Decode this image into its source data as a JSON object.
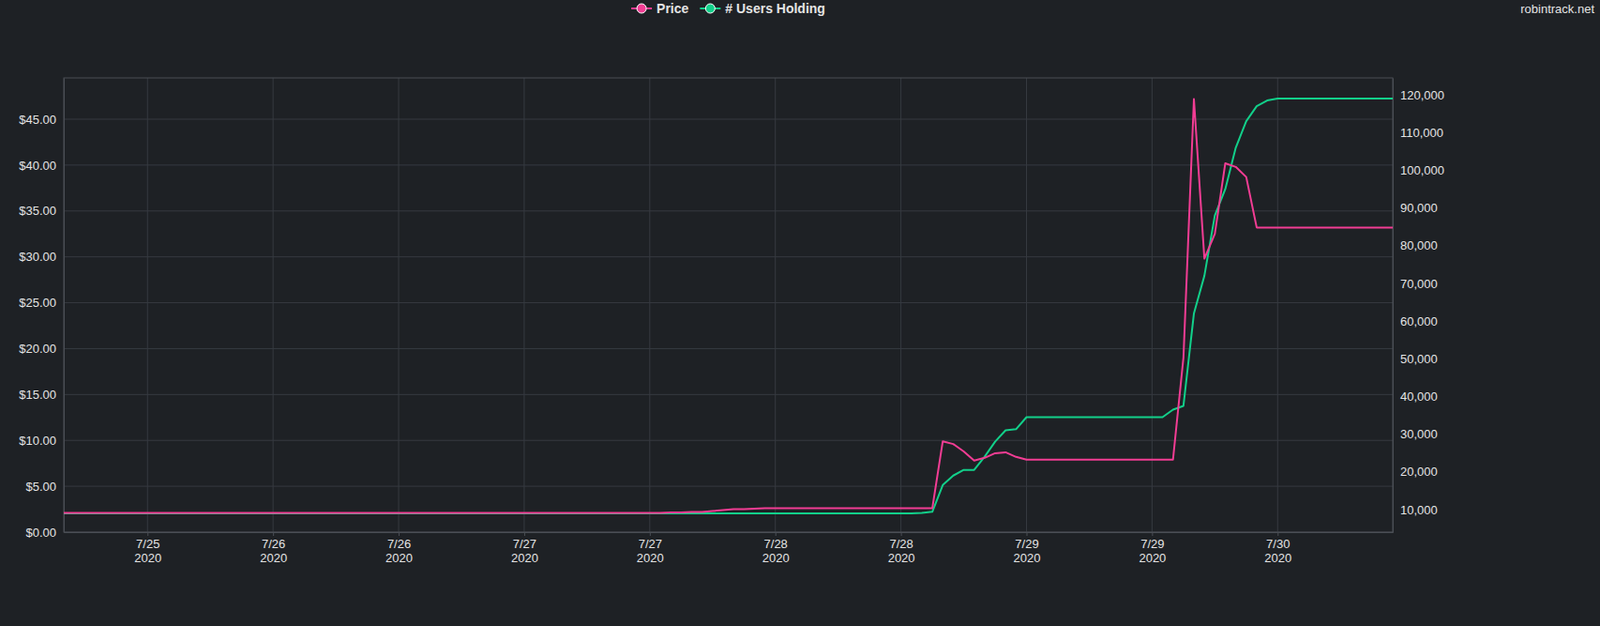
{
  "chart_data": {
    "type": "line",
    "annotations": [
      "robintrack.net"
    ],
    "legend": "top",
    "grid": true,
    "categories": [
      null,
      null,
      null,
      null,
      null,
      null,
      null,
      null,
      "7/25 2020",
      null,
      null,
      null,
      null,
      null,
      null,
      null,
      null,
      null,
      null,
      null,
      "7/26 2020",
      null,
      null,
      null,
      null,
      null,
      null,
      null,
      null,
      null,
      null,
      null,
      "7/26 2020",
      null,
      null,
      null,
      null,
      null,
      null,
      null,
      null,
      null,
      null,
      null,
      "7/27 2020",
      null,
      null,
      null,
      null,
      null,
      null,
      null,
      null,
      null,
      null,
      null,
      "7/27 2020",
      null,
      null,
      null,
      null,
      null,
      null,
      null,
      null,
      null,
      null,
      null,
      "7/28 2020",
      null,
      null,
      null,
      null,
      null,
      null,
      null,
      null,
      null,
      null,
      null,
      "7/28 2020",
      null,
      null,
      null,
      null,
      null,
      null,
      null,
      null,
      null,
      null,
      null,
      "7/29 2020",
      null,
      null,
      null,
      null,
      null,
      null,
      null,
      null,
      null,
      null,
      null,
      "7/29 2020",
      null,
      null,
      null,
      null,
      null,
      null,
      null,
      null,
      null,
      null,
      null,
      "7/30 2020",
      null,
      null,
      null,
      null,
      null,
      null,
      null,
      null,
      null,
      null,
      null
    ],
    "series": [
      {
        "name": "Price",
        "color": "#f23d94",
        "marker": "circle",
        "values": [
          2.1,
          2.1,
          2.1,
          2.1,
          2.1,
          2.1,
          2.1,
          2.1,
          2.1,
          2.1,
          2.1,
          2.1,
          2.1,
          2.1,
          2.1,
          2.1,
          2.1,
          2.1,
          2.1,
          2.1,
          2.1,
          2.1,
          2.1,
          2.1,
          2.1,
          2.1,
          2.1,
          2.1,
          2.1,
          2.1,
          2.1,
          2.1,
          2.1,
          2.1,
          2.1,
          2.1,
          2.1,
          2.1,
          2.1,
          2.1,
          2.1,
          2.1,
          2.1,
          2.1,
          2.1,
          2.1,
          2.1,
          2.1,
          2.1,
          2.1,
          2.1,
          2.1,
          2.1,
          2.1,
          2.1,
          2.1,
          2.1,
          2.1,
          2.15,
          2.15,
          2.2,
          2.2,
          2.3,
          2.4,
          2.5,
          2.5,
          2.55,
          2.6,
          2.6,
          2.6,
          2.6,
          2.6,
          2.6,
          2.6,
          2.6,
          2.6,
          2.6,
          2.6,
          2.6,
          2.6,
          2.6,
          2.6,
          2.6,
          2.6,
          9.9,
          9.6,
          8.8,
          7.8,
          8.1,
          8.6,
          8.7,
          8.2,
          7.9,
          7.9,
          7.9,
          7.9,
          7.9,
          7.9,
          7.9,
          7.9,
          7.9,
          7.9,
          7.9,
          7.9,
          7.9,
          7.9,
          7.9,
          19,
          47.2,
          29.8,
          32.5,
          40.2,
          39.8,
          38.7,
          33.2,
          33.2,
          33.2,
          33.2,
          33.2,
          33.2,
          33.2,
          33.2,
          33.2,
          33.2,
          33.2,
          33.2,
          33.2,
          33.2
        ]
      },
      {
        "name": "# Users Holding",
        "color": "#12d08a",
        "marker": "circle",
        "axis": "y2",
        "values": [
          9000,
          9000,
          9000,
          9000,
          9000,
          9000,
          9000,
          9000,
          9000,
          9000,
          9000,
          9000,
          9000,
          9000,
          9000,
          9000,
          9000,
          9000,
          9000,
          9000,
          9000,
          9000,
          9000,
          9000,
          9000,
          9000,
          9000,
          9000,
          9000,
          9000,
          9000,
          9000,
          9000,
          9000,
          9000,
          9000,
          9000,
          9000,
          9000,
          9000,
          9000,
          9000,
          9000,
          9000,
          9000,
          9000,
          9000,
          9000,
          9000,
          9000,
          9000,
          9000,
          9000,
          9000,
          9000,
          9000,
          9000,
          9000,
          9000,
          9000,
          9000,
          9000,
          9000,
          9000,
          9000,
          9000,
          9000,
          9000,
          9000,
          9000,
          9000,
          9000,
          9000,
          9000,
          9000,
          9000,
          9000,
          9000,
          9000,
          9000,
          9000,
          9000,
          9100,
          9400,
          16500,
          19000,
          20500,
          20500,
          24000,
          28000,
          31000,
          31300,
          34500,
          34500,
          34500,
          34500,
          34500,
          34500,
          34500,
          34500,
          34500,
          34500,
          34500,
          34500,
          34500,
          34500,
          36500,
          37500,
          62000,
          72000,
          88000,
          95000,
          106000,
          113000,
          117000,
          118500,
          119000,
          119000,
          119000,
          119000,
          119000,
          119000,
          119000,
          119000,
          119000,
          119000,
          119000,
          119000
        ]
      }
    ],
    "ylim": [
      0,
      49.5
    ],
    "yticks": [
      {
        "value": 0,
        "label": "$0.00"
      },
      {
        "value": 5,
        "label": "$5.00"
      },
      {
        "value": 10,
        "label": "$10.00"
      },
      {
        "value": 15,
        "label": "$15.00"
      },
      {
        "value": 20,
        "label": "$20.00"
      },
      {
        "value": 25,
        "label": "$25.00"
      },
      {
        "value": 30,
        "label": "$30.00"
      },
      {
        "value": 35,
        "label": "$35.00"
      },
      {
        "value": 40,
        "label": "$40.00"
      },
      {
        "value": 45,
        "label": "$45.00"
      }
    ],
    "y2lim": [
      4000,
      124500
    ],
    "y2ticks": [
      {
        "value": 10000,
        "label": "10,000"
      },
      {
        "value": 20000,
        "label": "20,000"
      },
      {
        "value": 30000,
        "label": "30,000"
      },
      {
        "value": 40000,
        "label": "40,000"
      },
      {
        "value": 50000,
        "label": "50,000"
      },
      {
        "value": 60000,
        "label": "60,000"
      },
      {
        "value": 70000,
        "label": "70,000"
      },
      {
        "value": 80000,
        "label": "80,000"
      },
      {
        "value": 90000,
        "label": "90,000"
      },
      {
        "value": 100000,
        "label": "100,000"
      },
      {
        "value": 110000,
        "label": "110,000"
      },
      {
        "value": 120000,
        "label": "120,000"
      }
    ]
  }
}
